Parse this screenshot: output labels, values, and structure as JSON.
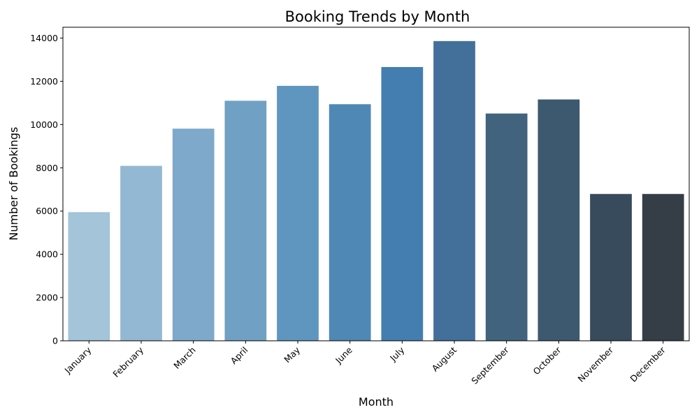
{
  "chart_data": {
    "type": "bar",
    "title": "Booking Trends by Month",
    "xlabel": "Month",
    "ylabel": "Number of Bookings",
    "categories": [
      "January",
      "February",
      "March",
      "April",
      "May",
      "June",
      "July",
      "August",
      "September",
      "October",
      "November",
      "December"
    ],
    "values": [
      5950,
      8090,
      9810,
      11100,
      11790,
      10940,
      12660,
      13860,
      10510,
      11160,
      6790,
      6790
    ],
    "ylim": [
      0,
      14500
    ],
    "yticks": [
      "0",
      "2000",
      "4000",
      "6000",
      "8000",
      "10000",
      "12000",
      "14000"
    ],
    "grid": false,
    "colors": [
      "#a3c4d9",
      "#93b8d3",
      "#7fa9cb",
      "#70a1c4",
      "#5f96bf",
      "#4f88b5",
      "#447eb0",
      "#43709a",
      "#41637e",
      "#3d596f",
      "#384b5c",
      "#353e47"
    ]
  }
}
